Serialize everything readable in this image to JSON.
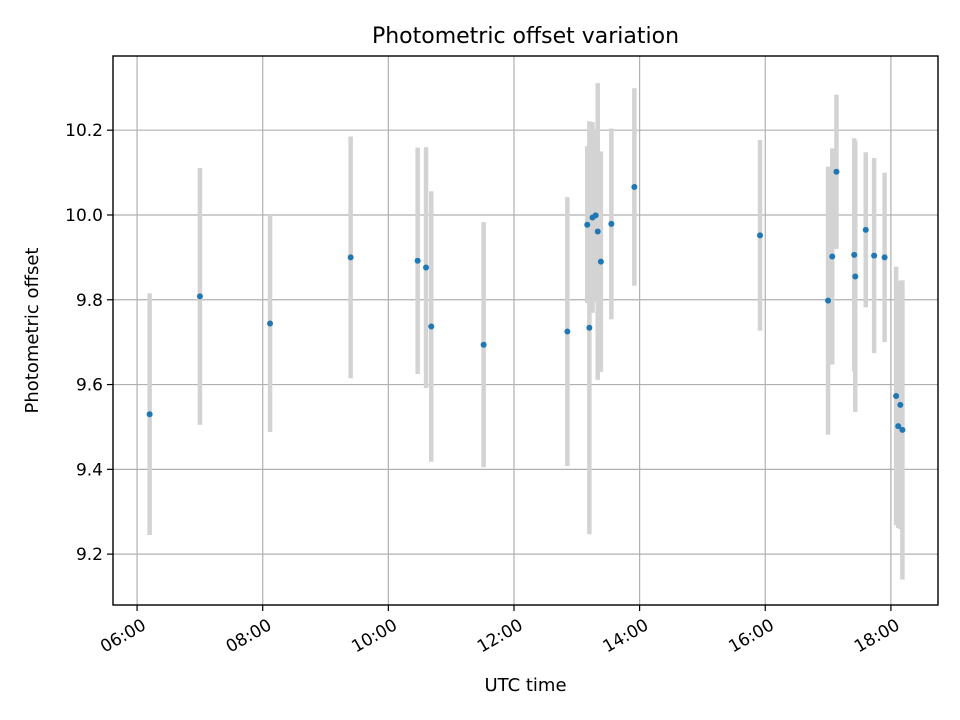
{
  "chart_data": {
    "type": "scatter",
    "title": "Photometric offset variation",
    "xlabel": "UTC time",
    "ylabel": "Photometric offset",
    "x_unit": "hours (UTC)",
    "xlim": [
      "05:37",
      "18:45"
    ],
    "ylim": [
      9.08,
      10.375
    ],
    "grid": true,
    "x_ticks": [
      "06:00",
      "08:00",
      "10:00",
      "12:00",
      "14:00",
      "16:00",
      "18:00"
    ],
    "y_ticks": [
      "9.2",
      "9.4",
      "9.6",
      "9.8",
      "10.0",
      "10.2"
    ],
    "colors": {
      "points": "#1f77b4",
      "error_bars": "#d3d3d3"
    },
    "series": [
      {
        "marker": "point",
        "points": [
          {
            "x": "06:12",
            "y": 9.53,
            "err": 0.285
          },
          {
            "x": "07:00",
            "y": 9.808,
            "err": 0.303
          },
          {
            "x": "08:07",
            "y": 9.744,
            "err": 0.256
          },
          {
            "x": "09:24",
            "y": 9.9,
            "err": 0.285
          },
          {
            "x": "10:28",
            "y": 9.892,
            "err": 0.267
          },
          {
            "x": "10:36",
            "y": 9.876,
            "err": 0.284
          },
          {
            "x": "10:41",
            "y": 9.737,
            "err": 0.319
          },
          {
            "x": "11:31",
            "y": 9.694,
            "err": 0.289
          },
          {
            "x": "12:51",
            "y": 9.725,
            "err": 0.317
          },
          {
            "x": "13:10",
            "y": 9.977,
            "err": 0.185
          },
          {
            "x": "13:12",
            "y": 9.734,
            "err": 0.487
          },
          {
            "x": "13:15",
            "y": 9.994,
            "err": 0.225
          },
          {
            "x": "13:18",
            "y": 9.999,
            "err": 0.203
          },
          {
            "x": "13:20",
            "y": 9.961,
            "err": 0.35
          },
          {
            "x": "13:23",
            "y": 9.89,
            "err": 0.26
          },
          {
            "x": "13:33",
            "y": 9.979,
            "err": 0.225
          },
          {
            "x": "13:55",
            "y": 10.066,
            "err": 0.233
          },
          {
            "x": "15:55",
            "y": 9.952,
            "err": 0.225
          },
          {
            "x": "17:00",
            "y": 9.798,
            "err": 0.316
          },
          {
            "x": "17:04",
            "y": 9.902,
            "err": 0.255
          },
          {
            "x": "17:08",
            "y": 10.102,
            "err": 0.182
          },
          {
            "x": "17:25",
            "y": 9.906,
            "err": 0.275
          },
          {
            "x": "17:26",
            "y": 9.855,
            "err": 0.32
          },
          {
            "x": "17:36",
            "y": 9.965,
            "err": 0.183
          },
          {
            "x": "17:44",
            "y": 9.904,
            "err": 0.23
          },
          {
            "x": "17:54",
            "y": 9.9,
            "err": 0.2
          },
          {
            "x": "18:05",
            "y": 9.573,
            "err": 0.305
          },
          {
            "x": "18:07",
            "y": 9.502,
            "err": 0.24
          },
          {
            "x": "18:09",
            "y": 9.552,
            "err": 0.293
          },
          {
            "x": "18:11",
            "y": 9.493,
            "err": 0.353
          }
        ]
      }
    ]
  }
}
